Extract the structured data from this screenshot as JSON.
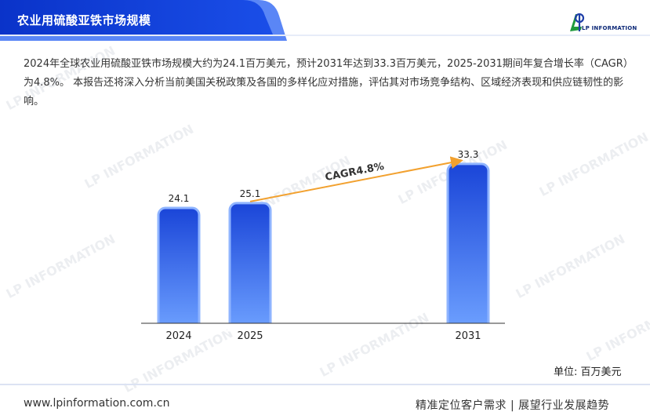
{
  "header": {
    "title": "农业用硫酸亚铁市场规模",
    "logo_text": "LP INFORMATION"
  },
  "description": "2024年全球农业用硫酸亚铁市场规模大约为24.1百万美元，预计2031年达到33.3百万美元，2025-2031期间年复合增长率（CAGR）为4.8%。 本报告还将深入分析当前美国关税政策及各国的多样化应对措施，评估其对市场竞争结构、区域经济表现和供应链韧性的影响。",
  "chart_data": {
    "type": "bar",
    "categories": [
      "2024",
      "2025",
      "2031"
    ],
    "values": [
      24.1,
      25.1,
      33.3
    ],
    "value_labels": [
      "24.1",
      "25.1",
      "33.3"
    ],
    "annotation": "CAGR4.8%",
    "unit": "单位: 百万美元",
    "grid": false,
    "legend": "none"
  },
  "watermark_text": "LP INFORMATION",
  "footer": {
    "url": "www.lpinformation.com.cn",
    "slogan": "精准定位客户需求 | 展望行业发展趋势"
  },
  "colors": {
    "header_dark": "#0a3bd6",
    "header_light": "#4f7df5",
    "bar_top": "#1a45d8",
    "bar_bottom": "#6da0ff",
    "bar_border": "#8fb4ff",
    "arrow": "#f2a12f"
  }
}
